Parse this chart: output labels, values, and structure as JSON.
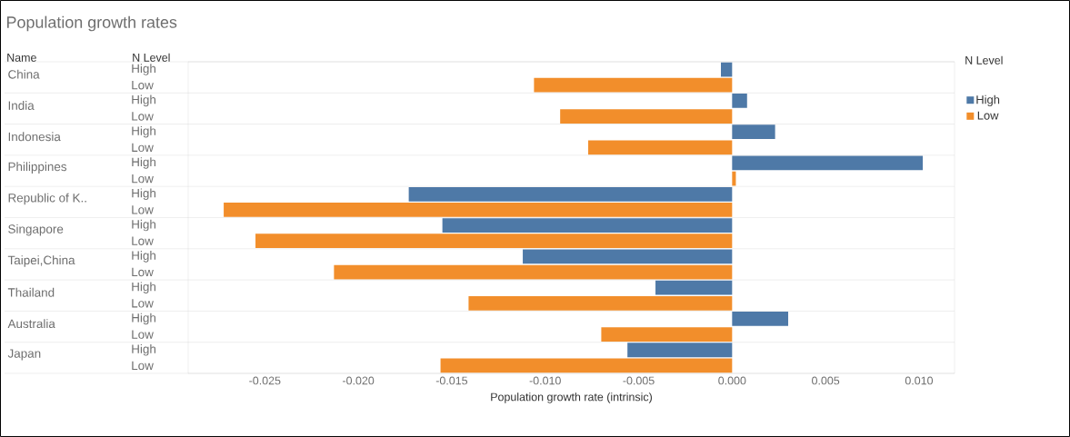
{
  "chart_data": {
    "type": "bar",
    "orientation": "horizontal",
    "title": "Population growth rates",
    "xlabel": "Population growth rate (intrinsic)",
    "ylabel": "Name",
    "legend_title": "N Level",
    "categories": [
      "China",
      "India",
      "Indonesia",
      "Philippines",
      "Republic of K..",
      "Singapore",
      "Taipei,China",
      "Thailand",
      "Australia",
      "Japan"
    ],
    "series": [
      {
        "name": "High",
        "color": "#4e79a7",
        "values": [
          -0.0006,
          0.0008,
          0.0023,
          0.0102,
          -0.0173,
          -0.0155,
          -0.0112,
          -0.0041,
          0.003,
          -0.0056
        ]
      },
      {
        "name": "Low",
        "color": "#f28e2b",
        "values": [
          -0.0106,
          -0.0092,
          -0.0077,
          0.0002,
          -0.0272,
          -0.0255,
          -0.0213,
          -0.0141,
          -0.007,
          -0.0156
        ]
      }
    ],
    "xlim": [
      -0.0291,
      0.0119
    ],
    "xticks": [
      {
        "value": -0.025,
        "label": "-0.025"
      },
      {
        "value": -0.02,
        "label": "-0.020"
      },
      {
        "value": -0.015,
        "label": "-0.015"
      },
      {
        "value": -0.01,
        "label": "-0.010"
      },
      {
        "value": -0.005,
        "label": "-0.005"
      },
      {
        "value": 0,
        "label": "0.000"
      },
      {
        "value": 0.005,
        "label": "0.005"
      },
      {
        "value": 0.01,
        "label": "0.010"
      }
    ],
    "legend": "right"
  }
}
